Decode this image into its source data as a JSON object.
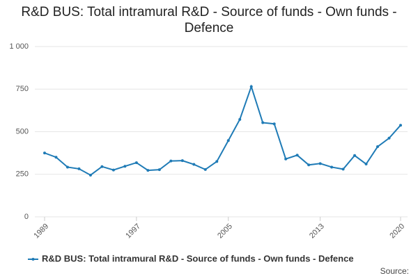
{
  "chart_data": {
    "type": "line",
    "title": "R&D BUS: Total intramural R&D - Source of funds - Own funds - Defence",
    "x": [
      1989,
      1990,
      1991,
      1992,
      1993,
      1994,
      1995,
      1996,
      1997,
      1998,
      1999,
      2000,
      2001,
      2002,
      2003,
      2004,
      2005,
      2006,
      2007,
      2008,
      2009,
      2010,
      2011,
      2012,
      2013,
      2014,
      2015,
      2016,
      2017,
      2018,
      2019,
      2020
    ],
    "series": [
      {
        "name": "R&D BUS: Total intramural R&D - Source of funds - Own funds - Defence",
        "color": "#1f7bb6",
        "values": [
          375,
          350,
          292,
          282,
          245,
          295,
          275,
          297,
          318,
          273,
          277,
          328,
          330,
          308,
          278,
          325,
          448,
          572,
          765,
          553,
          546,
          340,
          362,
          305,
          313,
          292,
          280,
          360,
          310,
          412,
          462,
          538
        ]
      }
    ],
    "xlim": [
      1989,
      2020
    ],
    "xticks": [
      1989,
      1997,
      2005,
      2013,
      2020
    ],
    "ylim": [
      0,
      1000
    ],
    "yticks": [
      0,
      250,
      500,
      750,
      {
        "value": 1000,
        "label": "1 000"
      }
    ],
    "grid": true,
    "legend": "bottom",
    "source": "Source:"
  }
}
